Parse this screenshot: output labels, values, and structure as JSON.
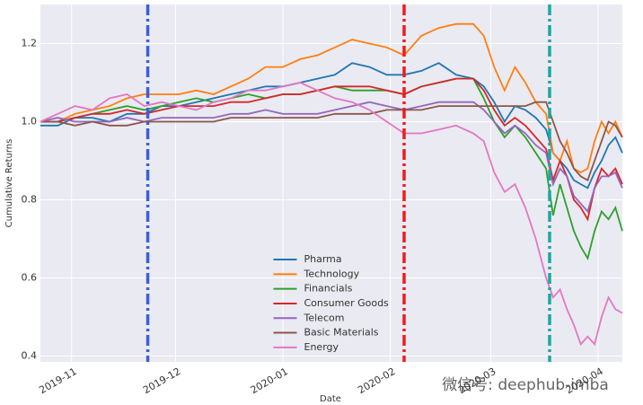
{
  "chart_data": {
    "type": "line",
    "x_label": "Date",
    "y_label": "Cumulative Returns",
    "x": [
      22,
      27,
      32,
      37,
      42,
      47,
      52,
      57,
      62,
      67,
      72,
      77,
      82,
      87,
      92,
      97,
      102,
      107,
      112,
      117,
      122,
      127,
      132,
      137,
      142,
      147,
      150,
      153,
      156,
      159,
      162,
      165,
      168,
      170,
      172,
      174,
      176,
      178,
      180,
      182,
      184,
      186,
      188,
      190
    ],
    "xlim": [
      22,
      190
    ],
    "xticks": [
      {
        "value": 31,
        "label": "2019-11"
      },
      {
        "value": 61,
        "label": "2019-12"
      },
      {
        "value": 92,
        "label": "2020-01"
      },
      {
        "value": 123,
        "label": "2020-02"
      },
      {
        "value": 152,
        "label": "2020-03"
      },
      {
        "value": 183,
        "label": "2020-04"
      }
    ],
    "ylim": [
      0.385,
      1.3
    ],
    "yticks": [
      0.4,
      0.6,
      0.8,
      {
        "value": 1,
        "label": "1.0"
      },
      1.2
    ],
    "grid": true,
    "legend": "lower center",
    "vlines": [
      {
        "x": 53,
        "color": "#3a5fd9"
      },
      {
        "x": 127,
        "color": "#ee1c1c"
      },
      {
        "x": 169,
        "color": "#1aa8a0"
      }
    ],
    "series": [
      {
        "name": "Pharma",
        "color": "#1f77b4",
        "values": [
          0.99,
          0.99,
          1.01,
          1.01,
          1.0,
          1.02,
          1.02,
          1.04,
          1.04,
          1.05,
          1.06,
          1.07,
          1.08,
          1.09,
          1.09,
          1.1,
          1.11,
          1.12,
          1.15,
          1.14,
          1.12,
          1.12,
          1.13,
          1.15,
          1.12,
          1.11,
          1.09,
          1.05,
          1.0,
          1.04,
          1.03,
          1.01,
          0.98,
          0.92,
          0.9,
          0.88,
          0.85,
          0.84,
          0.83,
          0.87,
          0.9,
          0.94,
          0.96,
          0.92
        ]
      },
      {
        "name": "Technology",
        "color": "#ff7f0e",
        "values": [
          1.0,
          1.0,
          1.02,
          1.03,
          1.04,
          1.06,
          1.07,
          1.07,
          1.07,
          1.08,
          1.07,
          1.09,
          1.11,
          1.14,
          1.14,
          1.16,
          1.17,
          1.19,
          1.21,
          1.2,
          1.19,
          1.17,
          1.22,
          1.24,
          1.25,
          1.25,
          1.22,
          1.14,
          1.08,
          1.14,
          1.1,
          1.05,
          1.02,
          0.92,
          0.9,
          0.95,
          0.88,
          0.87,
          0.88,
          0.95,
          1.0,
          0.97,
          1.0,
          0.96
        ]
      },
      {
        "name": "Financials",
        "color": "#2ca02c",
        "values": [
          1.0,
          1.0,
          1.01,
          1.02,
          1.03,
          1.04,
          1.03,
          1.04,
          1.05,
          1.06,
          1.05,
          1.06,
          1.07,
          1.06,
          1.07,
          1.07,
          1.08,
          1.09,
          1.08,
          1.08,
          1.08,
          1.07,
          1.09,
          1.1,
          1.11,
          1.11,
          1.06,
          1.0,
          0.96,
          0.99,
          0.96,
          0.92,
          0.88,
          0.76,
          0.84,
          0.78,
          0.72,
          0.68,
          0.65,
          0.72,
          0.77,
          0.75,
          0.78,
          0.72
        ]
      },
      {
        "name": "Consumer Goods",
        "color": "#d62728",
        "values": [
          1.0,
          1.0,
          1.01,
          1.02,
          1.02,
          1.03,
          1.02,
          1.03,
          1.04,
          1.04,
          1.04,
          1.05,
          1.05,
          1.06,
          1.07,
          1.07,
          1.08,
          1.09,
          1.09,
          1.09,
          1.08,
          1.07,
          1.09,
          1.1,
          1.11,
          1.11,
          1.08,
          1.03,
          0.99,
          1.01,
          0.99,
          0.96,
          0.93,
          0.85,
          0.9,
          0.86,
          0.8,
          0.78,
          0.75,
          0.83,
          0.88,
          0.86,
          0.88,
          0.84
        ]
      },
      {
        "name": "Telecom",
        "color": "#9467bd",
        "values": [
          1.0,
          1.01,
          1.0,
          1.0,
          1.0,
          1.01,
          1.0,
          1.01,
          1.01,
          1.01,
          1.01,
          1.02,
          1.02,
          1.03,
          1.02,
          1.02,
          1.02,
          1.03,
          1.04,
          1.05,
          1.04,
          1.03,
          1.04,
          1.05,
          1.05,
          1.05,
          1.03,
          1.0,
          0.97,
          0.99,
          0.97,
          0.94,
          0.92,
          0.84,
          0.88,
          0.86,
          0.81,
          0.79,
          0.77,
          0.83,
          0.86,
          0.86,
          0.87,
          0.83
        ]
      },
      {
        "name": "Basic Materials",
        "color": "#8c564b",
        "values": [
          1.0,
          1.0,
          0.99,
          1.0,
          0.99,
          0.99,
          1.0,
          1.0,
          1.0,
          1.0,
          1.0,
          1.01,
          1.01,
          1.01,
          1.01,
          1.01,
          1.01,
          1.02,
          1.02,
          1.02,
          1.03,
          1.03,
          1.03,
          1.04,
          1.04,
          1.04,
          1.04,
          1.04,
          1.04,
          1.04,
          1.04,
          1.05,
          1.05,
          1.0,
          0.95,
          0.92,
          0.88,
          0.86,
          0.85,
          0.9,
          0.95,
          1.0,
          0.99,
          0.96
        ]
      },
      {
        "name": "Energy",
        "color": "#e377c2",
        "values": [
          1.0,
          1.02,
          1.04,
          1.03,
          1.06,
          1.07,
          1.04,
          1.05,
          1.04,
          1.03,
          1.05,
          1.06,
          1.08,
          1.08,
          1.09,
          1.1,
          1.08,
          1.06,
          1.05,
          1.03,
          1.0,
          0.97,
          0.97,
          0.98,
          0.99,
          0.97,
          0.95,
          0.87,
          0.82,
          0.84,
          0.78,
          0.7,
          0.6,
          0.55,
          0.57,
          0.52,
          0.48,
          0.43,
          0.45,
          0.43,
          0.5,
          0.55,
          0.52,
          0.51
        ]
      }
    ],
    "watermark": "微信号: deephub-imba"
  }
}
